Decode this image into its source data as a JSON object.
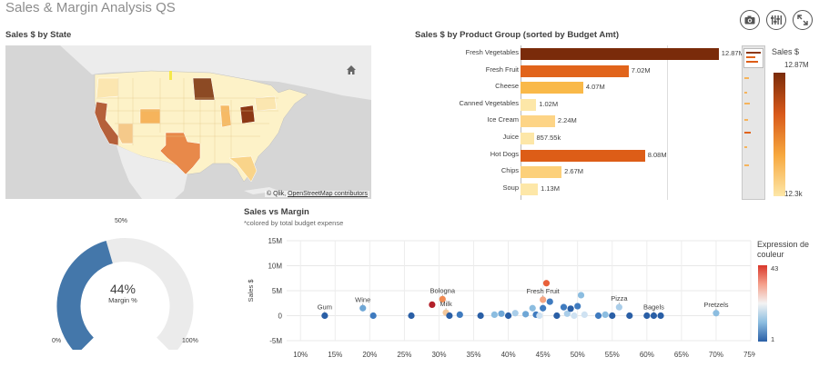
{
  "app": {
    "title": "Sales & Margin Analysis QS"
  },
  "toolbar": {
    "snapshot_icon": "camera-icon",
    "selections_icon": "selections-icon",
    "fullscreen_icon": "expand-icon"
  },
  "map_panel": {
    "title": "Sales $ by State",
    "home_icon": "home-icon",
    "credit_prefix": "© Qlik,",
    "credit_link": "OpenStreetMap contributors"
  },
  "bar_panel": {
    "title": "Sales $ by Product Group (sorted by Budget Amt)",
    "legend_title": "Sales $",
    "legend_max": "12.87M",
    "legend_min": "12.3k"
  },
  "gauge_panel": {
    "value": "44%",
    "label": "Margin %",
    "min_label": "0%",
    "mid_label": "50%",
    "max_label": "100%",
    "fraction": 0.44
  },
  "scatter_panel": {
    "title": "Sales vs Margin",
    "subtitle": "*colored by total budget expense",
    "y_axis_label": "Sales $",
    "color_legend_title": "Expression de couleur",
    "color_legend_max": "43",
    "color_legend_min": "1"
  },
  "chart_data": [
    {
      "type": "bar",
      "title": "Sales $ by Product Group (sorted by Budget Amt)",
      "categories": [
        "Fresh Vegetables",
        "Fresh Fruit",
        "Cheese",
        "Canned Vegetables",
        "Ice Cream",
        "Juice",
        "Hot Dogs",
        "Chips",
        "Soup"
      ],
      "values": [
        12870000,
        7020000,
        4070000,
        1020000,
        2240000,
        857550,
        8080000,
        2670000,
        1130000
      ],
      "value_labels": [
        "12.87M",
        "7.02M",
        "4.07M",
        "1.02M",
        "2.24M",
        "857.55k",
        "8.08M",
        "2.67M",
        "1.13M"
      ],
      "colors": [
        "#7a2b0a",
        "#e1641b",
        "#f9b949",
        "#fde7a8",
        "#fdd486",
        "#fde7a8",
        "#dd5d17",
        "#fcd07a",
        "#fde7a8"
      ],
      "xlim": [
        0,
        13000000
      ]
    },
    {
      "type": "scatter",
      "title": "Sales vs Margin",
      "xlabel": "",
      "ylabel": "Sales $",
      "xlim": [
        0.08,
        0.75
      ],
      "ylim": [
        -5000000,
        15000000
      ],
      "x_ticks": [
        "10%",
        "15%",
        "20%",
        "25%",
        "30%",
        "35%",
        "40%",
        "45%",
        "50%",
        "55%",
        "60%",
        "65%",
        "70%",
        "75%"
      ],
      "y_ticks": [
        "15M",
        "10M",
        "5M",
        "0",
        "-5M"
      ],
      "points": [
        {
          "x": 0.135,
          "y": 0,
          "color": "#2a5fa6",
          "label": "Gum"
        },
        {
          "x": 0.19,
          "y": 1500000,
          "color": "#6fa7d6",
          "label": "Wine"
        },
        {
          "x": 0.205,
          "y": 0,
          "color": "#3f7bbf",
          "label": ""
        },
        {
          "x": 0.26,
          "y": 0,
          "color": "#2a5fa6",
          "label": ""
        },
        {
          "x": 0.29,
          "y": 2200000,
          "color": "#b3202a",
          "label": ""
        },
        {
          "x": 0.305,
          "y": 3300000,
          "color": "#f08a52",
          "label": "Bologna"
        },
        {
          "x": 0.31,
          "y": 600000,
          "color": "#f3c79a",
          "label": "Milk"
        },
        {
          "x": 0.315,
          "y": 0,
          "color": "#2a5fa6",
          "label": ""
        },
        {
          "x": 0.33,
          "y": 200000,
          "color": "#3f7bbf",
          "label": ""
        },
        {
          "x": 0.36,
          "y": 0,
          "color": "#2a5fa6",
          "label": ""
        },
        {
          "x": 0.38,
          "y": 200000,
          "color": "#8cbde0",
          "label": ""
        },
        {
          "x": 0.39,
          "y": 400000,
          "color": "#6fa7d6",
          "label": ""
        },
        {
          "x": 0.4,
          "y": 0,
          "color": "#2a5fa6",
          "label": ""
        },
        {
          "x": 0.41,
          "y": 500000,
          "color": "#a9cde9",
          "label": ""
        },
        {
          "x": 0.425,
          "y": 300000,
          "color": "#6fa7d6",
          "label": ""
        },
        {
          "x": 0.435,
          "y": 1500000,
          "color": "#8cbde0",
          "label": ""
        },
        {
          "x": 0.44,
          "y": 200000,
          "color": "#3f7bbf",
          "label": ""
        },
        {
          "x": 0.445,
          "y": 0,
          "color": "#cfe2f2",
          "label": ""
        },
        {
          "x": 0.45,
          "y": 3200000,
          "color": "#f4a582",
          "label": "Fresh Fruit"
        },
        {
          "x": 0.45,
          "y": 1500000,
          "color": "#3f7bbf",
          "label": ""
        },
        {
          "x": 0.455,
          "y": 6500000,
          "color": "#e8603a",
          "label": ""
        },
        {
          "x": 0.46,
          "y": 2800000,
          "color": "#3f7bbf",
          "label": ""
        },
        {
          "x": 0.47,
          "y": 0,
          "color": "#2a5fa6",
          "label": ""
        },
        {
          "x": 0.48,
          "y": 1700000,
          "color": "#3f7bbf",
          "label": ""
        },
        {
          "x": 0.485,
          "y": 400000,
          "color": "#a9cde9",
          "label": ""
        },
        {
          "x": 0.49,
          "y": 1400000,
          "color": "#2a5fa6",
          "label": ""
        },
        {
          "x": 0.495,
          "y": 0,
          "color": "#cfe2f2",
          "label": ""
        },
        {
          "x": 0.5,
          "y": 1900000,
          "color": "#3f7bbf",
          "label": ""
        },
        {
          "x": 0.505,
          "y": 4100000,
          "color": "#8cbde0",
          "label": ""
        },
        {
          "x": 0.51,
          "y": 200000,
          "color": "#cfe2f2",
          "label": ""
        },
        {
          "x": 0.53,
          "y": 0,
          "color": "#3f7bbf",
          "label": ""
        },
        {
          "x": 0.54,
          "y": 200000,
          "color": "#8cbde0",
          "label": ""
        },
        {
          "x": 0.55,
          "y": 0,
          "color": "#2a5fa6",
          "label": ""
        },
        {
          "x": 0.56,
          "y": 1700000,
          "color": "#a9cde9",
          "label": "Pizza"
        },
        {
          "x": 0.575,
          "y": 0,
          "color": "#2a5fa6",
          "label": ""
        },
        {
          "x": 0.6,
          "y": 0,
          "color": "#2a5fa6",
          "label": ""
        },
        {
          "x": 0.61,
          "y": 0,
          "color": "#2a5fa6",
          "label": "Bagels"
        },
        {
          "x": 0.62,
          "y": 0,
          "color": "#2a5fa6",
          "label": ""
        },
        {
          "x": 0.7,
          "y": 500000,
          "color": "#8cbde0",
          "label": "Pretzels"
        }
      ]
    }
  ]
}
